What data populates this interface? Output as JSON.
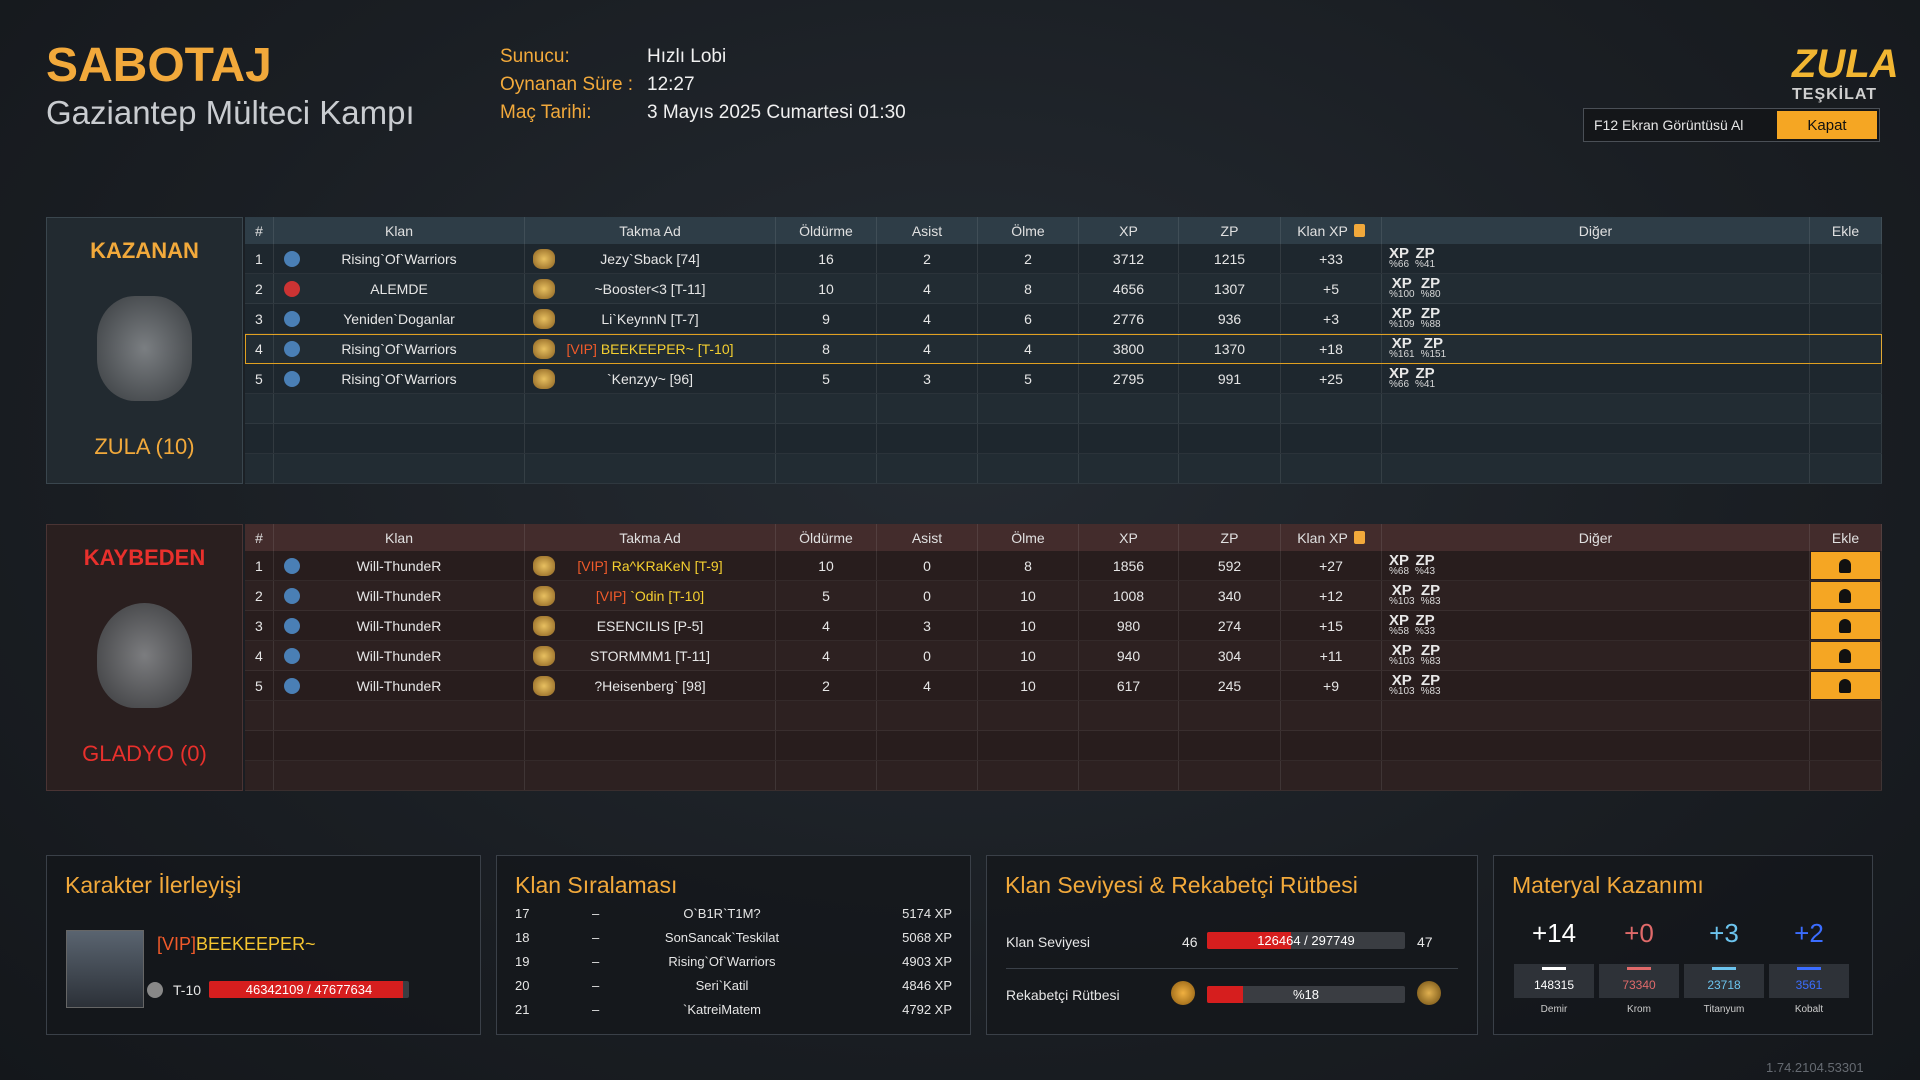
{
  "header": {
    "mode": "SABOTAJ",
    "map": "Gaziantep Mülteci Kampı",
    "info": [
      {
        "label": "Sunucu:",
        "value": "Hızlı Lobi"
      },
      {
        "label": "Oynanan Süre :",
        "value": "12:27"
      },
      {
        "label": "Maç Tarihi:",
        "value": "3 Mayıs 2025 Cumartesi 01:30"
      }
    ],
    "logo": [
      "ZULA",
      "TEŞKİLAT"
    ],
    "screenshot_button": "F12 Ekran Görüntüsü Al",
    "close_button": "Kapat"
  },
  "columns": [
    "#",
    "Klan",
    "Takma Ad",
    "Öldürme",
    "Asist",
    "Ölme",
    "XP",
    "ZP",
    "Klan XP",
    "Diğer",
    "Ekle"
  ],
  "bonus_labels": [
    "XP",
    "ZP"
  ],
  "teams": [
    {
      "result": "KAZANAN",
      "name": "ZULA (10)",
      "rows": [
        {
          "rank": 1,
          "clan": "Rising`Of`Warriors",
          "nick": "Jezy`Sback [74]",
          "kills": 16,
          "assists": 2,
          "deaths": 2,
          "xp": 3712,
          "zp": 1215,
          "clan_xp": "+33",
          "xp_bonus": "%66",
          "zp_bonus": "%41"
        },
        {
          "rank": 2,
          "clan": "ALEMDE",
          "nick": "~Booster<3 [T-11]",
          "kills": 10,
          "assists": 4,
          "deaths": 8,
          "xp": 4656,
          "zp": 1307,
          "clan_xp": "+5",
          "xp_bonus": "%100",
          "zp_bonus": "%80"
        },
        {
          "rank": 3,
          "clan": "Yeniden`Doganlar",
          "nick": "Li`KeynnN [T-7]",
          "kills": 9,
          "assists": 4,
          "deaths": 6,
          "xp": 2776,
          "zp": 936,
          "clan_xp": "+3",
          "xp_bonus": "%109",
          "zp_bonus": "%88"
        },
        {
          "rank": 4,
          "clan": "Rising`Of`Warriors",
          "vip": "[VIP]",
          "nick": "BEEKEEPER~ [T-10]",
          "self": true,
          "kills": 8,
          "assists": 4,
          "deaths": 4,
          "xp": 3800,
          "zp": 1370,
          "clan_xp": "+18",
          "xp_bonus": "%161",
          "zp_bonus": "%151"
        },
        {
          "rank": 5,
          "clan": "Rising`Of`Warriors",
          "nick": "`Kenzyy~ [96]",
          "kills": 5,
          "assists": 3,
          "deaths": 5,
          "xp": 2795,
          "zp": 991,
          "clan_xp": "+25",
          "xp_bonus": "%66",
          "zp_bonus": "%41"
        }
      ]
    },
    {
      "result": "KAYBEDEN",
      "name": "GLADYO (0)",
      "rows": [
        {
          "rank": 1,
          "clan": "Will-ThundeR",
          "vip": "[VIP]",
          "nick": "Ra^KRaKeN [T-9]",
          "kills": 10,
          "assists": 0,
          "deaths": 8,
          "xp": 1856,
          "zp": 592,
          "clan_xp": "+27",
          "xp_bonus": "%68",
          "zp_bonus": "%43"
        },
        {
          "rank": 2,
          "clan": "Will-ThundeR",
          "vip": "[VIP]",
          "nick": "`Odin [T-10]",
          "kills": 5,
          "assists": 0,
          "deaths": 10,
          "xp": 1008,
          "zp": 340,
          "clan_xp": "+12",
          "xp_bonus": "%103",
          "zp_bonus": "%83"
        },
        {
          "rank": 3,
          "clan": "Will-ThundeR",
          "nick": "ESENCILIS [P-5]",
          "kills": 4,
          "assists": 3,
          "deaths": 10,
          "xp": 980,
          "zp": 274,
          "clan_xp": "+15",
          "xp_bonus": "%58",
          "zp_bonus": "%33"
        },
        {
          "rank": 4,
          "clan": "Will-ThundeR",
          "nick": "STORMMM1 [T-11]",
          "kills": 4,
          "assists": 0,
          "deaths": 10,
          "xp": 940,
          "zp": 304,
          "clan_xp": "+11",
          "xp_bonus": "%103",
          "zp_bonus": "%83"
        },
        {
          "rank": 5,
          "clan": "Will-ThundeR",
          "nick": "?Heisenberg` [98]",
          "kills": 2,
          "assists": 4,
          "deaths": 10,
          "xp": 617,
          "zp": 245,
          "clan_xp": "+9",
          "xp_bonus": "%103",
          "zp_bonus": "%83"
        }
      ]
    }
  ],
  "character": {
    "title": "Karakter İlerleyişi",
    "vip": "[VIP]",
    "name": "BEEKEEPER~",
    "rank": "T-10",
    "xp": {
      "value": 46342109,
      "max": 47677634,
      "label": "46342109 / 47677634"
    }
  },
  "clan_ranking": {
    "title": "Klan Sıralaması",
    "rows": [
      {
        "rank": 17,
        "change": "–",
        "clan": "O`B1R`T1M?",
        "xp": "5174 XP"
      },
      {
        "rank": 18,
        "change": "–",
        "clan": "SonSancak`Teskilat",
        "xp": "5068 XP"
      },
      {
        "rank": 19,
        "change": "–",
        "clan": "Rising`Of`Warriors",
        "xp": "4903 XP"
      },
      {
        "rank": 20,
        "change": "–",
        "clan": "Seri`Katil",
        "xp": "4846 XP"
      },
      {
        "rank": 21,
        "change": "–",
        "clan": "`KatreiMatem",
        "xp": "4792 XP"
      }
    ]
  },
  "clan_level": {
    "title": "Klan Seviyesi & Rekabetçi Rütbesi",
    "level": {
      "label": "Klan Seviyesi",
      "current": 46,
      "next": 47,
      "value": 126464,
      "max": 297749,
      "progress_label": "126464 / 297749"
    },
    "competitive": {
      "label": "Rekabetçi Rütbesi",
      "value": 18,
      "progress_label": "%18"
    }
  },
  "materials": {
    "title": "Materyal Kazanımı",
    "items": [
      {
        "gain": "+14",
        "total": 148315,
        "name": "Demir",
        "color": "#ffffff"
      },
      {
        "gain": "+0",
        "total": 73340,
        "name": "Krom",
        "color": "#e06a6a"
      },
      {
        "gain": "+3",
        "total": 23718,
        "name": "Titanyum",
        "color": "#6cc4ee"
      },
      {
        "gain": "+2",
        "total": 3561,
        "name": "Kobalt",
        "color": "#3b6dff"
      }
    ]
  },
  "version": "1.74.2104.53301"
}
